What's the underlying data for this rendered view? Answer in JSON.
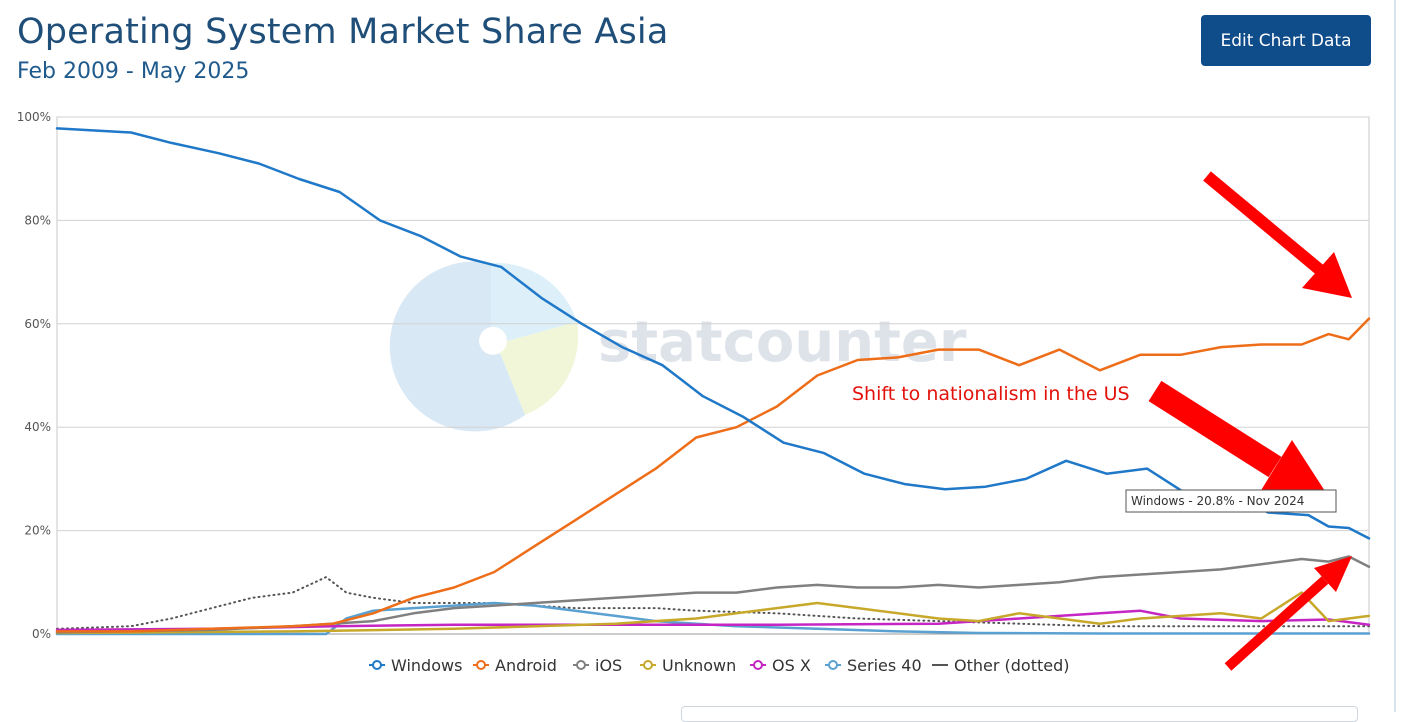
{
  "header": {
    "title": "Operating System Market Share Asia",
    "subtitle": "Feb 2009 - May 2025",
    "edit_button_label": "Edit Chart Data"
  },
  "watermark": {
    "text": "statcounter"
  },
  "annotation": {
    "text": "Shift to nationalism in the US"
  },
  "tooltip": {
    "text": "Windows - 20.8% - Nov 2024"
  },
  "colors": {
    "windows": "#1f78c8",
    "android": "#ee6d18",
    "ios": "#808080",
    "unknown": "#c7a82b",
    "osx": "#c526c3",
    "series40": "#5aa1d1",
    "other": "#555555",
    "annotation": "#e3120b",
    "arrow": "#ff0000"
  },
  "chart_data": {
    "type": "line",
    "x_start": "2009-02",
    "x_end": "2025-05",
    "ylim": [
      0,
      100
    ],
    "y_ticks": [
      "0%",
      "20%",
      "40%",
      "60%",
      "80%",
      "100%"
    ],
    "grid": true,
    "legend_position": "bottom",
    "series": [
      {
        "name": "Windows",
        "key": "windows",
        "dotted": false,
        "points": [
          [
            "2009-02",
            97.8
          ],
          [
            "2010-01",
            97
          ],
          [
            "2010-07",
            95
          ],
          [
            "2011-02",
            93
          ],
          [
            "2011-08",
            91
          ],
          [
            "2012-02",
            88
          ],
          [
            "2012-08",
            85.5
          ],
          [
            "2013-02",
            80
          ],
          [
            "2013-08",
            77
          ],
          [
            "2014-02",
            73
          ],
          [
            "2014-08",
            71
          ],
          [
            "2015-02",
            65
          ],
          [
            "2015-08",
            60
          ],
          [
            "2016-02",
            55.5
          ],
          [
            "2016-08",
            52
          ],
          [
            "2017-02",
            46
          ],
          [
            "2017-08",
            42
          ],
          [
            "2018-02",
            37
          ],
          [
            "2018-08",
            35
          ],
          [
            "2019-02",
            31
          ],
          [
            "2019-08",
            29
          ],
          [
            "2020-02",
            28
          ],
          [
            "2020-08",
            28.5
          ],
          [
            "2021-02",
            30
          ],
          [
            "2021-08",
            33.5
          ],
          [
            "2022-02",
            31
          ],
          [
            "2022-08",
            32
          ],
          [
            "2023-02",
            27
          ],
          [
            "2023-08",
            27.5
          ],
          [
            "2024-02",
            23.5
          ],
          [
            "2024-08",
            23
          ],
          [
            "2024-11",
            20.8
          ],
          [
            "2025-02",
            20.5
          ],
          [
            "2025-05",
            18.5
          ]
        ]
      },
      {
        "name": "Android",
        "key": "android",
        "dotted": false,
        "points": [
          [
            "2009-02",
            0.5
          ],
          [
            "2010-01",
            0.5
          ],
          [
            "2011-01",
            1
          ],
          [
            "2012-01",
            1.5
          ],
          [
            "2012-07",
            2
          ],
          [
            "2013-01",
            4
          ],
          [
            "2013-07",
            7
          ],
          [
            "2014-01",
            9
          ],
          [
            "2014-07",
            12
          ],
          [
            "2015-01",
            17
          ],
          [
            "2015-07",
            22
          ],
          [
            "2016-01",
            27
          ],
          [
            "2016-07",
            32
          ],
          [
            "2017-01",
            38
          ],
          [
            "2017-07",
            40
          ],
          [
            "2018-01",
            44
          ],
          [
            "2018-07",
            50
          ],
          [
            "2019-01",
            53
          ],
          [
            "2019-07",
            53.5
          ],
          [
            "2020-01",
            55
          ],
          [
            "2020-07",
            55
          ],
          [
            "2021-01",
            52
          ],
          [
            "2021-07",
            55
          ],
          [
            "2022-01",
            51
          ],
          [
            "2022-07",
            54
          ],
          [
            "2023-01",
            54
          ],
          [
            "2023-07",
            55.5
          ],
          [
            "2024-01",
            56
          ],
          [
            "2024-07",
            56
          ],
          [
            "2024-11",
            58
          ],
          [
            "2025-02",
            57
          ],
          [
            "2025-05",
            61
          ]
        ]
      },
      {
        "name": "iOS",
        "key": "ios",
        "dotted": false,
        "points": [
          [
            "2009-02",
            0.3
          ],
          [
            "2011-01",
            0.8
          ],
          [
            "2012-01",
            1.5
          ],
          [
            "2013-01",
            2.5
          ],
          [
            "2013-07",
            4
          ],
          [
            "2014-01",
            5
          ],
          [
            "2014-07",
            5.5
          ],
          [
            "2015-01",
            6
          ],
          [
            "2015-07",
            6.5
          ],
          [
            "2016-01",
            7
          ],
          [
            "2016-07",
            7.5
          ],
          [
            "2017-01",
            8
          ],
          [
            "2017-07",
            8
          ],
          [
            "2018-01",
            9
          ],
          [
            "2018-07",
            9.5
          ],
          [
            "2019-01",
            9
          ],
          [
            "2019-07",
            9
          ],
          [
            "2020-01",
            9.5
          ],
          [
            "2020-07",
            9
          ],
          [
            "2021-01",
            9.5
          ],
          [
            "2021-07",
            10
          ],
          [
            "2022-01",
            11
          ],
          [
            "2022-07",
            11.5
          ],
          [
            "2023-01",
            12
          ],
          [
            "2023-07",
            12.5
          ],
          [
            "2024-01",
            13.5
          ],
          [
            "2024-07",
            14.5
          ],
          [
            "2024-11",
            14
          ],
          [
            "2025-02",
            15
          ],
          [
            "2025-05",
            13
          ]
        ]
      },
      {
        "name": "Unknown",
        "key": "unknown",
        "dotted": false,
        "points": [
          [
            "2009-02",
            0.2
          ],
          [
            "2012-01",
            0.5
          ],
          [
            "2014-01",
            1
          ],
          [
            "2016-01",
            2
          ],
          [
            "2017-01",
            3
          ],
          [
            "2017-07",
            4
          ],
          [
            "2018-01",
            5
          ],
          [
            "2018-07",
            6
          ],
          [
            "2019-01",
            5
          ],
          [
            "2019-07",
            4
          ],
          [
            "2020-01",
            3
          ],
          [
            "2020-07",
            2.5
          ],
          [
            "2021-01",
            4
          ],
          [
            "2021-07",
            3
          ],
          [
            "2022-01",
            2
          ],
          [
            "2022-07",
            3
          ],
          [
            "2023-01",
            3.5
          ],
          [
            "2023-07",
            4
          ],
          [
            "2024-01",
            3
          ],
          [
            "2024-07",
            8
          ],
          [
            "2024-11",
            2.5
          ],
          [
            "2025-02",
            3
          ],
          [
            "2025-05",
            3.5
          ]
        ]
      },
      {
        "name": "OS X",
        "key": "osx",
        "dotted": false,
        "points": [
          [
            "2009-02",
            0.8
          ],
          [
            "2011-01",
            1
          ],
          [
            "2012-07",
            1.5
          ],
          [
            "2014-01",
            1.8
          ],
          [
            "2016-01",
            1.8
          ],
          [
            "2018-01",
            1.8
          ],
          [
            "2020-01",
            2
          ],
          [
            "2021-01",
            3
          ],
          [
            "2021-07",
            3.5
          ],
          [
            "2022-01",
            4
          ],
          [
            "2022-07",
            4.5
          ],
          [
            "2023-01",
            3
          ],
          [
            "2024-01",
            2.5
          ],
          [
            "2024-11",
            2.8
          ],
          [
            "2025-05",
            1.8
          ]
        ]
      },
      {
        "name": "Series 40",
        "key": "series40",
        "dotted": false,
        "points": [
          [
            "2009-02",
            0
          ],
          [
            "2012-06",
            0
          ],
          [
            "2012-09",
            3
          ],
          [
            "2013-01",
            4.5
          ],
          [
            "2013-07",
            5
          ],
          [
            "2014-01",
            5.5
          ],
          [
            "2014-07",
            6
          ],
          [
            "2015-01",
            5.5
          ],
          [
            "2015-07",
            4.5
          ],
          [
            "2016-01",
            3.5
          ],
          [
            "2016-07",
            2.5
          ],
          [
            "2017-01",
            2
          ],
          [
            "2017-07",
            1.5
          ],
          [
            "2018-07",
            1
          ],
          [
            "2019-07",
            0.5
          ],
          [
            "2020-07",
            0.2
          ],
          [
            "2022-01",
            0.1
          ],
          [
            "2025-05",
            0.1
          ]
        ]
      },
      {
        "name": "Other (dotted)",
        "key": "other",
        "dotted": true,
        "points": [
          [
            "2009-02",
            1
          ],
          [
            "2010-01",
            1.5
          ],
          [
            "2010-07",
            3
          ],
          [
            "2011-01",
            5
          ],
          [
            "2011-07",
            7
          ],
          [
            "2012-01",
            8
          ],
          [
            "2012-06",
            11
          ],
          [
            "2012-09",
            8
          ],
          [
            "2013-01",
            7
          ],
          [
            "2013-07",
            6
          ],
          [
            "2014-01",
            6
          ],
          [
            "2014-07",
            6
          ],
          [
            "2015-01",
            5.5
          ],
          [
            "2015-07",
            5
          ],
          [
            "2016-01",
            5
          ],
          [
            "2016-07",
            5
          ],
          [
            "2017-01",
            4.5
          ],
          [
            "2018-01",
            4
          ],
          [
            "2019-01",
            3
          ],
          [
            "2020-01",
            2.5
          ],
          [
            "2021-01",
            2
          ],
          [
            "2022-01",
            1.5
          ],
          [
            "2023-01",
            1.5
          ],
          [
            "2024-01",
            1.5
          ],
          [
            "2025-05",
            1.5
          ]
        ]
      }
    ]
  }
}
